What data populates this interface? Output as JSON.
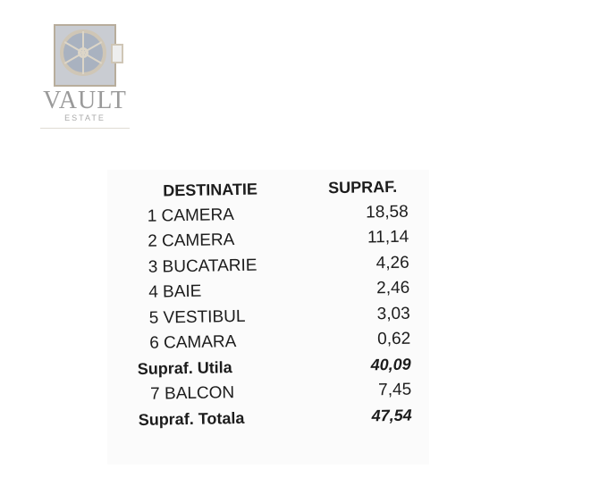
{
  "logo": {
    "name": "VAULT",
    "subtitle": "ESTATE"
  },
  "table": {
    "headers": {
      "destination": "DESTINATIE",
      "area": "SUPRAF."
    },
    "rows": [
      {
        "label": "1 CAMERA",
        "value": "18,58",
        "total": false
      },
      {
        "label": "2 CAMERA",
        "value": "11,14",
        "total": false
      },
      {
        "label": "3 BUCATARIE",
        "value": "4,26",
        "total": false
      },
      {
        "label": "4 BAIE",
        "value": "2,46",
        "total": false
      },
      {
        "label": "5 VESTIBUL",
        "value": "3,03",
        "total": false
      },
      {
        "label": "6 CAMARA",
        "value": "0,62",
        "total": false
      },
      {
        "label": "Supraf. Utila",
        "value": "40,09",
        "total": true
      },
      {
        "label": "7 BALCON",
        "value": "7,45",
        "total": false
      },
      {
        "label": "Supraf. Totala",
        "value": "47,54",
        "total": true
      }
    ]
  }
}
